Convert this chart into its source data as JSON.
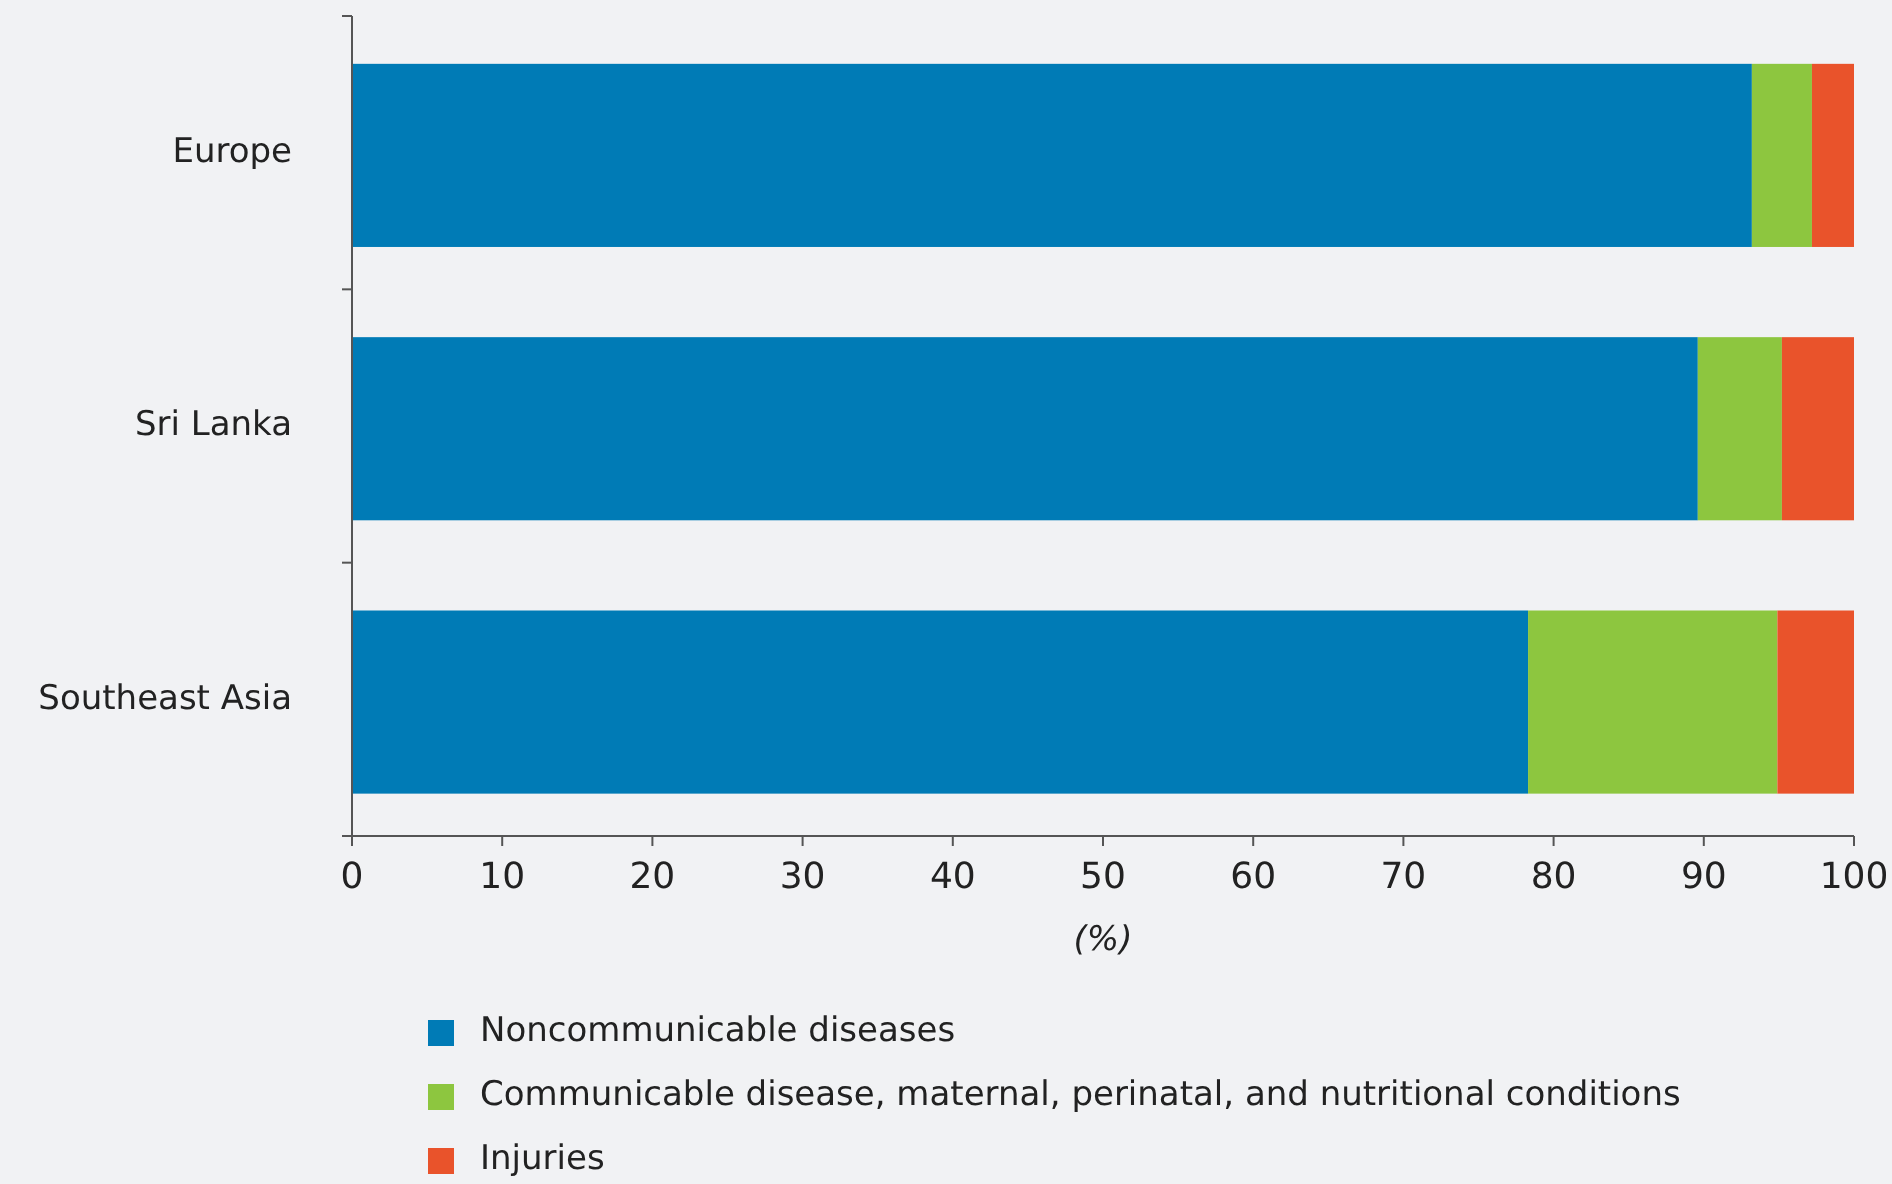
{
  "chart_data": {
    "type": "bar",
    "orientation": "horizontal",
    "stacked": true,
    "xlabel": "(%)",
    "categories": [
      "Europe",
      "Sri Lanka",
      "Southeast Asia"
    ],
    "series": [
      {
        "name": "Noncommunicable diseases",
        "color": "#007bb6",
        "values": [
          93.2,
          89.6,
          78.3
        ]
      },
      {
        "name": "Communicable disease, maternal, perinatal, and nutritional conditions",
        "color": "#8dc63f",
        "values": [
          4.0,
          5.6,
          16.6
        ]
      },
      {
        "name": "Injuries",
        "color": "#e9532b",
        "values": [
          2.8,
          4.8,
          5.1
        ]
      }
    ],
    "xlim": [
      0,
      100
    ],
    "xticks": [
      0,
      10,
      20,
      30,
      40,
      50,
      60,
      70,
      80,
      90,
      100
    ],
    "grid": false,
    "legend": "bottom"
  }
}
